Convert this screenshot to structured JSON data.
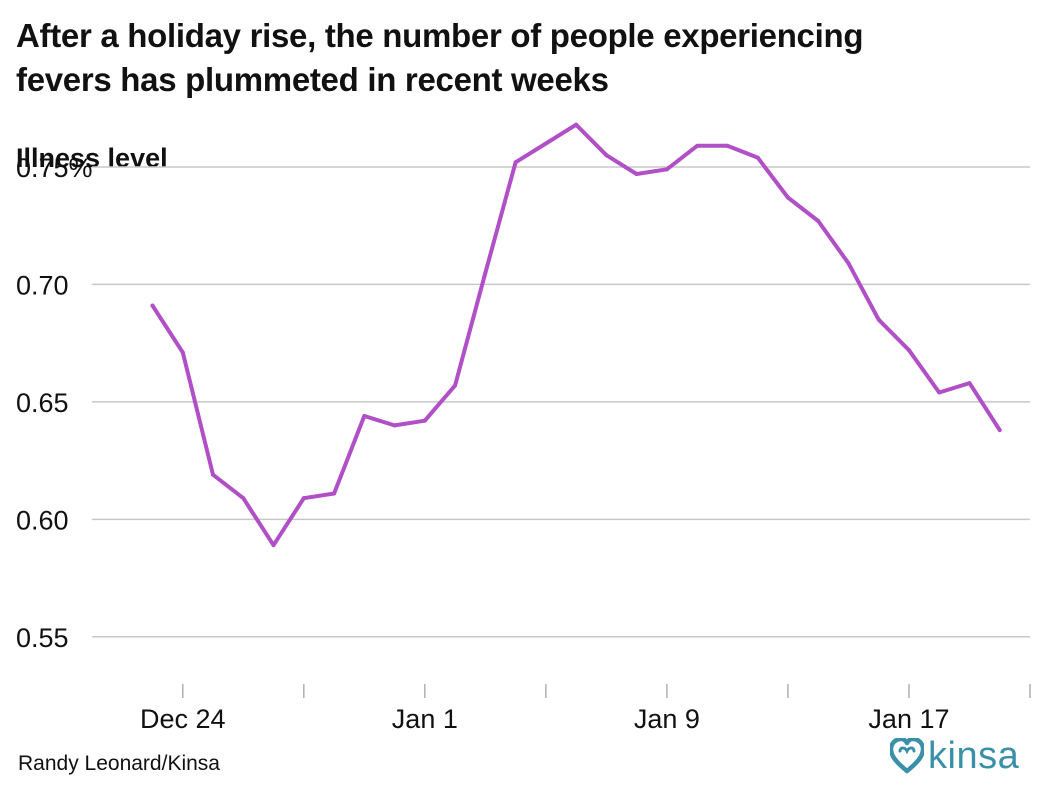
{
  "title_lines": [
    "After a holiday rise, the number of people experiencing",
    "fevers has plummeted in recent weeks"
  ],
  "source": "Randy Leonard/Kinsa",
  "logo_text": "kinsa",
  "colors": {
    "line": "#b04fc6",
    "grid": "#c8c8c8",
    "logo": "#3a90a8"
  },
  "chart_data": {
    "type": "line",
    "title": "After a holiday rise, the number of people experiencing fevers has plummeted in recent weeks",
    "ylabel": "Illness level",
    "xlabel": "",
    "ylim": [
      0.535,
      0.77
    ],
    "xlim": [
      -3,
      28
    ],
    "y_ticks": [
      {
        "value": 0.75,
        "label": "0.75%"
      },
      {
        "value": 0.7,
        "label": "0.70"
      },
      {
        "value": 0.65,
        "label": "0.65"
      },
      {
        "value": 0.6,
        "label": "0.60"
      },
      {
        "value": 0.55,
        "label": "0.55"
      }
    ],
    "x_ticks": [
      0,
      4,
      8,
      12,
      16,
      20,
      24,
      28
    ],
    "x_tick_labels": [
      {
        "day": 0,
        "label": "Dec 24"
      },
      {
        "day": 8,
        "label": "Jan 1"
      },
      {
        "day": 16,
        "label": "Jan 9"
      },
      {
        "day": 24,
        "label": "Jan 17"
      }
    ],
    "grid": true,
    "series": [
      {
        "name": "Illness level",
        "x": [
          -1,
          0,
          1,
          2,
          3,
          4,
          5,
          6,
          7,
          8,
          9,
          10,
          11,
          12,
          13,
          14,
          15,
          16,
          17,
          18,
          19,
          20,
          21,
          22,
          23,
          24,
          25,
          26,
          27
        ],
        "values": [
          0.691,
          0.671,
          0.619,
          0.609,
          0.589,
          0.609,
          0.611,
          0.644,
          0.64,
          0.642,
          0.657,
          0.705,
          0.752,
          0.76,
          0.768,
          0.755,
          0.747,
          0.749,
          0.759,
          0.759,
          0.754,
          0.737,
          0.727,
          0.709,
          0.685,
          0.672,
          0.654,
          0.658,
          0.638
        ]
      }
    ]
  }
}
